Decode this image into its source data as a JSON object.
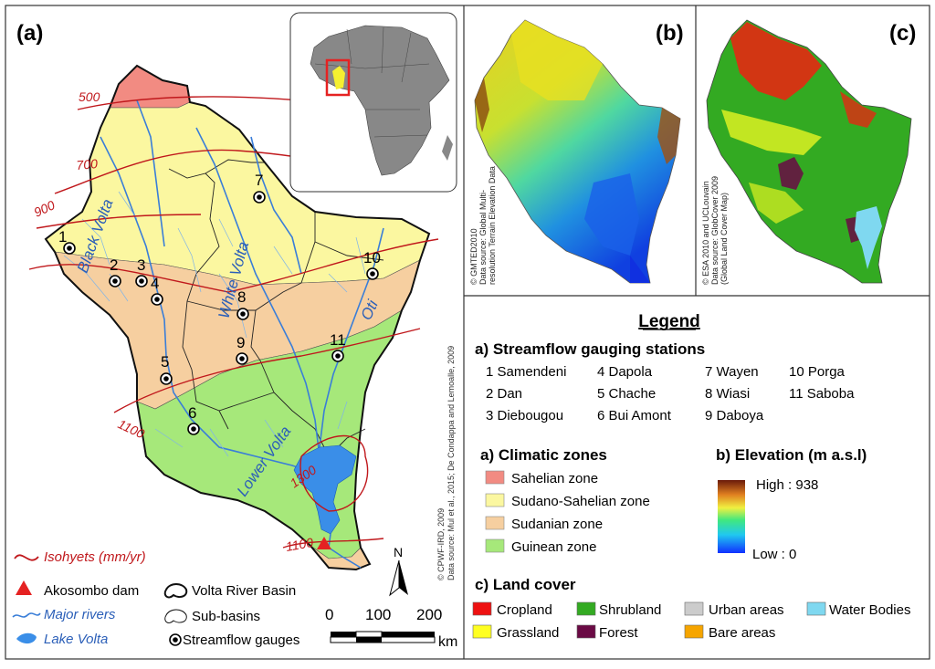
{
  "panels": {
    "a": "(a)",
    "b": "(b)",
    "c": "(c)"
  },
  "credits": {
    "b": [
      "© GMTED2010",
      "Data source: Global Multi-",
      "resolution Terrain Elevation Data"
    ],
    "c": [
      "© ESA 2010 and UCLouvain",
      "Data source: GlobCover 2009",
      "(Global Land Cover Map)"
    ],
    "a": [
      "© CPWF-IRD, 2009",
      "Data source: Mul et al., 2015; De Condappa and Lemoalle, 2009"
    ]
  },
  "map_a": {
    "rivers": [
      {
        "name": "Black Volta",
        "label": "Black Volta"
      },
      {
        "name": "White Volta",
        "label": "White Volta"
      },
      {
        "name": "Oti",
        "label": "Oti"
      },
      {
        "name": "Lower Volta",
        "label": "Lower Volta"
      }
    ],
    "isohyets": [
      "500",
      "700",
      "900",
      "1100",
      "1300",
      "1100"
    ],
    "gauges": [
      {
        "id": "1"
      },
      {
        "id": "2"
      },
      {
        "id": "3"
      },
      {
        "id": "4"
      },
      {
        "id": "5"
      },
      {
        "id": "6"
      },
      {
        "id": "7"
      },
      {
        "id": "8"
      },
      {
        "id": "9"
      },
      {
        "id": "10"
      },
      {
        "id": "11"
      }
    ],
    "north_label": "N",
    "scale": {
      "ticks": [
        "0",
        "100",
        "200"
      ],
      "unit": "km"
    }
  },
  "map_legend": {
    "isohyets": "Isohyets (mm/yr)",
    "dam": "Akosombo dam",
    "rivers": "Major rivers",
    "lake": "Lake Volta",
    "basin": "Volta River Basin",
    "subbasins": "Sub-basins",
    "gauges": "Streamflow gauges"
  },
  "legend": {
    "title": "Legend",
    "stations_title": "a) Streamflow gauging stations",
    "stations": [
      "1 Samendeni",
      "2 Dan",
      "3 Diebougou",
      "4 Dapola",
      "5 Chache",
      "6 Bui Amont",
      "7 Wayen",
      "8 Wiasi",
      "9 Daboya",
      "10 Porga",
      "11 Saboba"
    ],
    "climate_title": "a) Climatic zones",
    "climate": [
      {
        "label": "Sahelian zone",
        "color": "#f28b82"
      },
      {
        "label": "Sudano-Sahelian zone",
        "color": "#fbf7a0"
      },
      {
        "label": "Sudanian zone",
        "color": "#f6cfa0"
      },
      {
        "label": "Guinean zone",
        "color": "#a6e87a"
      }
    ],
    "elevation_title": "b) Elevation (m a.s.l)",
    "elevation_high": "High : 938",
    "elevation_low": "Low : 0",
    "landcover_title": "c) Land cover",
    "landcover": [
      {
        "label": "Cropland",
        "color": "#ee1111"
      },
      {
        "label": "Grassland",
        "color": "#ffff22"
      },
      {
        "label": "Shrubland",
        "color": "#33aa22"
      },
      {
        "label": "Forest",
        "color": "#6a0a44"
      },
      {
        "label": "Urban areas",
        "color": "#cccccc"
      },
      {
        "label": "Bare areas",
        "color": "#f6a500"
      },
      {
        "label": "Water Bodies",
        "color": "#7fd8f0"
      }
    ]
  }
}
